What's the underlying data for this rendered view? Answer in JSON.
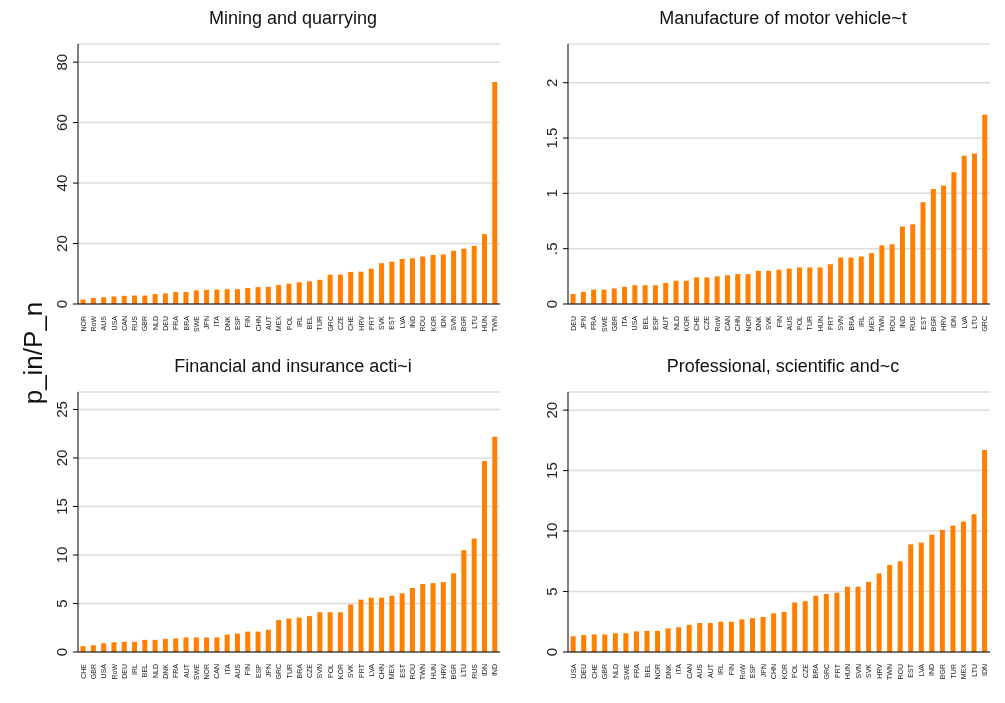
{
  "chart_data": [
    {
      "type": "bar",
      "title": "Mining and quarrying",
      "ylabel": "p_in/P_n",
      "color": "#ff8000",
      "grid": "y",
      "legend": false,
      "ylim": [
        0,
        86
      ],
      "yticks": [
        0,
        20,
        40,
        60,
        80
      ],
      "categories": [
        "NOR",
        "RoW",
        "AUS",
        "USA",
        "CAN",
        "RUS",
        "GBR",
        "NLD",
        "DEU",
        "FRA",
        "BRA",
        "SWE",
        "JPN",
        "ITA",
        "DNK",
        "ESP",
        "FIN",
        "CHN",
        "AUT",
        "MEX",
        "POL",
        "IRL",
        "BEL",
        "TUR",
        "GRC",
        "CZE",
        "CHE",
        "HRV",
        "PRT",
        "SVK",
        "EST",
        "LVA",
        "IND",
        "ROU",
        "KOR",
        "IDN",
        "SVN",
        "BGR",
        "LTU",
        "HUN",
        "TWN"
      ],
      "values": [
        1.5,
        2.0,
        2.2,
        2.5,
        2.7,
        2.8,
        2.8,
        3.3,
        3.5,
        4.0,
        4.0,
        4.5,
        4.7,
        4.8,
        4.9,
        4.9,
        5.3,
        5.6,
        5.7,
        6.3,
        6.7,
        7.2,
        7.5,
        8.0,
        9.7,
        9.7,
        10.6,
        10.7,
        11.7,
        13.5,
        14.0,
        14.9,
        15.1,
        15.7,
        16.2,
        16.4,
        17.6,
        18.3,
        19.2,
        23.1,
        73.4
      ]
    },
    {
      "type": "bar",
      "title": "Manufacture of motor vehicle~t",
      "color": "#ff8000",
      "grid": "y",
      "legend": false,
      "ylim": [
        0,
        2.35
      ],
      "yticks": [
        0,
        {
          "value": 0.5,
          "label": ".5"
        },
        1,
        1.5,
        2
      ],
      "categories": [
        "DEU",
        "JPN",
        "FRA",
        "SWE",
        "GBR",
        "ITA",
        "USA",
        "BEL",
        "ESP",
        "AUT",
        "NLD",
        "KOR",
        "CHE",
        "CZE",
        "RoW",
        "CAN",
        "CHN",
        "NOR",
        "DNK",
        "SVK",
        "FIN",
        "AUS",
        "POL",
        "TUR",
        "HUN",
        "PRT",
        "SVN",
        "BRA",
        "IRL",
        "MEX",
        "TWN",
        "ROU",
        "IND",
        "RUS",
        "EST",
        "BGR",
        "HRV",
        "IDN",
        "LVA",
        "LTU",
        "GRC"
      ],
      "values": [
        0.09,
        0.11,
        0.13,
        0.13,
        0.14,
        0.155,
        0.17,
        0.17,
        0.17,
        0.19,
        0.21,
        0.21,
        0.24,
        0.24,
        0.25,
        0.26,
        0.27,
        0.27,
        0.3,
        0.3,
        0.31,
        0.32,
        0.33,
        0.33,
        0.33,
        0.36,
        0.42,
        0.42,
        0.43,
        0.46,
        0.53,
        0.54,
        0.7,
        0.72,
        0.92,
        1.04,
        1.07,
        1.19,
        1.34,
        1.36,
        1.71
      ]
    },
    {
      "type": "bar",
      "title": "Financial and insurance acti~i",
      "color": "#ff8000",
      "grid": "y",
      "legend": false,
      "ylim": [
        0,
        26.8
      ],
      "yticks": [
        0,
        5,
        10,
        15,
        20,
        25
      ],
      "categories": [
        "CHE",
        "GBR",
        "USA",
        "RoW",
        "DEU",
        "IRL",
        "BEL",
        "NLD",
        "DNK",
        "FRA",
        "AUT",
        "SWE",
        "NOR",
        "CAN",
        "ITA",
        "AUS",
        "FIN",
        "ESP",
        "JPN",
        "GRC",
        "TUR",
        "BRA",
        "CZE",
        "SVN",
        "POL",
        "KOR",
        "SVK",
        "PRT",
        "LVA",
        "CHN",
        "MEX",
        "EST",
        "ROU",
        "TWN",
        "HUN",
        "HRV",
        "BGR",
        "LTU",
        "RUS",
        "IDN",
        "IND"
      ],
      "values": [
        0.6,
        0.7,
        0.9,
        1.0,
        1.05,
        1.05,
        1.25,
        1.25,
        1.35,
        1.4,
        1.5,
        1.5,
        1.5,
        1.5,
        1.8,
        1.9,
        2.1,
        2.1,
        2.3,
        3.3,
        3.45,
        3.55,
        3.7,
        4.1,
        4.1,
        4.1,
        4.9,
        5.4,
        5.6,
        5.6,
        5.8,
        6.05,
        6.6,
        7.0,
        7.1,
        7.2,
        8.1,
        10.5,
        11.7,
        19.7,
        22.2
      ]
    },
    {
      "type": "bar",
      "title": "Professional, scientific and~c",
      "color": "#ff8000",
      "grid": "y",
      "legend": false,
      "ylim": [
        0,
        21.5
      ],
      "yticks": [
        0,
        5,
        10,
        15,
        20
      ],
      "categories": [
        "USA",
        "DEU",
        "CHE",
        "GBR",
        "NLD",
        "SWE",
        "FRA",
        "BEL",
        "NOR",
        "DNK",
        "ITA",
        "CAN",
        "AUS",
        "AUT",
        "IRL",
        "FIN",
        "RoW",
        "ESP",
        "JPN",
        "CHN",
        "KOR",
        "POL",
        "CZE",
        "BRA",
        "GRC",
        "PRT",
        "HUN",
        "SVN",
        "SVK",
        "HRV",
        "TWN",
        "ROU",
        "EST",
        "LVA",
        "IND",
        "BGR",
        "TUR",
        "MEX",
        "LTU",
        "IDN"
      ],
      "values": [
        1.3,
        1.4,
        1.45,
        1.45,
        1.55,
        1.55,
        1.7,
        1.75,
        1.75,
        1.95,
        2.05,
        2.25,
        2.4,
        2.4,
        2.5,
        2.5,
        2.7,
        2.8,
        2.9,
        3.2,
        3.3,
        4.1,
        4.2,
        4.65,
        4.8,
        4.9,
        5.4,
        5.4,
        5.8,
        6.5,
        7.2,
        7.5,
        8.9,
        9.05,
        9.7,
        10.1,
        10.45,
        10.8,
        11.4,
        16.7
      ]
    }
  ]
}
